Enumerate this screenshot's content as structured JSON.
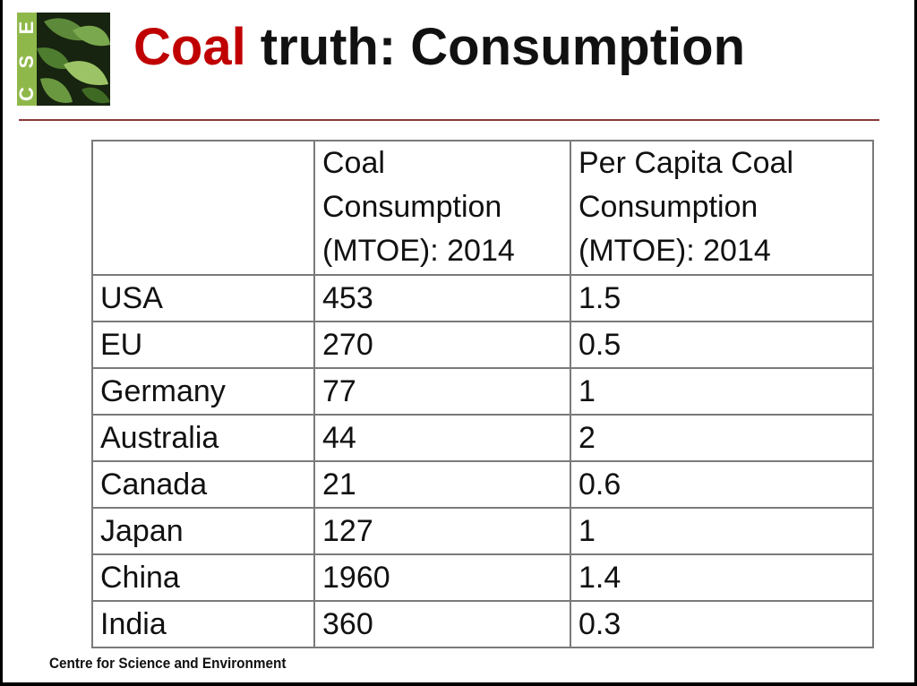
{
  "logo": {
    "letters": [
      "C",
      "S",
      "E"
    ],
    "colors": {
      "green": "#8fb84a",
      "dark": "#1b2a14"
    }
  },
  "title": {
    "accent": "Coal",
    "rest": " truth: Consumption",
    "accent_color": "#c00000"
  },
  "table": {
    "headers": [
      "",
      "Coal Consumption (MTOE): 2014",
      "Per Capita Coal Consumption (MTOE): 2014"
    ],
    "rows": [
      [
        "USA",
        "453",
        "1.5"
      ],
      [
        "EU",
        "270",
        "0.5"
      ],
      [
        "Germany",
        "77",
        "1"
      ],
      [
        "Australia",
        "44",
        "2"
      ],
      [
        "Canada",
        "21",
        "0.6"
      ],
      [
        "Japan",
        "127",
        "1"
      ],
      [
        "China",
        "1960",
        "1.4"
      ],
      [
        "India",
        "360",
        "0.3"
      ]
    ]
  },
  "footer": "Centre for Science and Environment"
}
